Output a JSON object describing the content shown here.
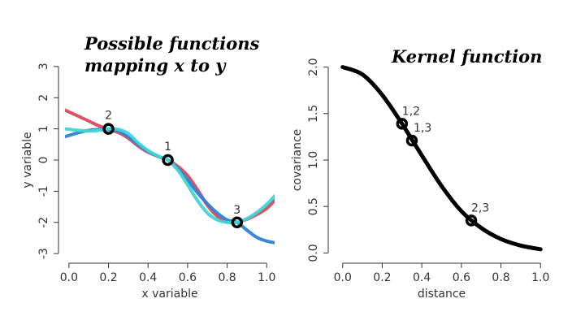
{
  "chart_data": [
    {
      "type": "line",
      "title": "Possible functions\nmapping x to y",
      "title_lines": [
        "Possible functions",
        "mapping x to y"
      ],
      "xlabel": "x variable",
      "ylabel": "y variable",
      "xlim": [
        -0.02,
        1.04
      ],
      "ylim": [
        -3.1,
        3.1
      ],
      "xticks": [
        "0.0",
        "0.2",
        "0.4",
        "0.6",
        "0.8",
        "1.0"
      ],
      "yticks": [
        "-3",
        "-2",
        "-1",
        "0",
        "1",
        "2",
        "3"
      ],
      "series": [
        {
          "color": "#d94a5a",
          "x": [
            -0.02,
            0.05,
            0.1,
            0.15,
            0.2,
            0.25,
            0.3,
            0.35,
            0.4,
            0.45,
            0.5,
            0.55,
            0.6,
            0.65,
            0.7,
            0.75,
            0.8,
            0.85,
            0.9,
            0.95,
            1.0,
            1.04
          ],
          "values": [
            1.6,
            1.4,
            1.25,
            1.1,
            0.98,
            0.88,
            0.7,
            0.45,
            0.25,
            0.12,
            0.0,
            -0.2,
            -0.5,
            -0.95,
            -1.45,
            -1.8,
            -1.98,
            -2.0,
            -1.9,
            -1.75,
            -1.55,
            -1.3
          ]
        },
        {
          "color": "#2f7fd6",
          "x": [
            -0.02,
            0.05,
            0.1,
            0.15,
            0.2,
            0.25,
            0.3,
            0.35,
            0.4,
            0.45,
            0.5,
            0.55,
            0.6,
            0.65,
            0.7,
            0.75,
            0.8,
            0.85,
            0.9,
            0.95,
            1.0,
            1.04
          ],
          "values": [
            0.75,
            0.88,
            0.95,
            0.98,
            0.98,
            0.93,
            0.75,
            0.5,
            0.28,
            0.12,
            0.0,
            -0.28,
            -0.65,
            -1.05,
            -1.4,
            -1.7,
            -1.92,
            -2.0,
            -2.25,
            -2.48,
            -2.6,
            -2.65
          ]
        },
        {
          "color": "#3ed6d6",
          "x": [
            -0.02,
            0.05,
            0.1,
            0.15,
            0.2,
            0.25,
            0.3,
            0.35,
            0.4,
            0.45,
            0.5,
            0.55,
            0.6,
            0.65,
            0.7,
            0.75,
            0.8,
            0.85,
            0.9,
            0.95,
            1.0,
            1.04
          ],
          "values": [
            1.0,
            0.95,
            0.93,
            0.95,
            1.0,
            0.98,
            0.85,
            0.55,
            0.3,
            0.13,
            0.0,
            -0.32,
            -0.8,
            -1.3,
            -1.7,
            -1.92,
            -2.0,
            -2.0,
            -1.88,
            -1.68,
            -1.42,
            -1.15
          ]
        }
      ],
      "points": [
        {
          "label": "2",
          "x": 0.2,
          "y": 1.0
        },
        {
          "label": "1",
          "x": 0.5,
          "y": 0.0
        },
        {
          "label": "3",
          "x": 0.85,
          "y": -2.0
        }
      ]
    },
    {
      "type": "line",
      "title": "Kernel function",
      "xlabel": "distance",
      "ylabel": "covariance",
      "xlim": [
        -0.04,
        1.04
      ],
      "ylim": [
        -0.04,
        2.04
      ],
      "xticks": [
        "0.0",
        "0.2",
        "0.4",
        "0.6",
        "0.8",
        "1.0"
      ],
      "yticks": [
        "0.0",
        "0.5",
        "1.0",
        "1.5",
        "2.0"
      ],
      "series": [
        {
          "color": "#000000",
          "x": [
            0.0,
            0.1,
            0.2,
            0.3,
            0.4,
            0.5,
            0.6,
            0.7,
            0.8,
            0.9,
            1.0
          ],
          "values": [
            2.0,
            1.92,
            1.7,
            1.39,
            1.05,
            0.72,
            0.45,
            0.27,
            0.15,
            0.08,
            0.04
          ]
        }
      ],
      "points": [
        {
          "label": "1,2",
          "x": 0.3,
          "y": 1.39
        },
        {
          "label": "1,3",
          "x": 0.35,
          "y": 1.21
        },
        {
          "label": "2,3",
          "x": 0.65,
          "y": 0.35
        }
      ]
    }
  ]
}
